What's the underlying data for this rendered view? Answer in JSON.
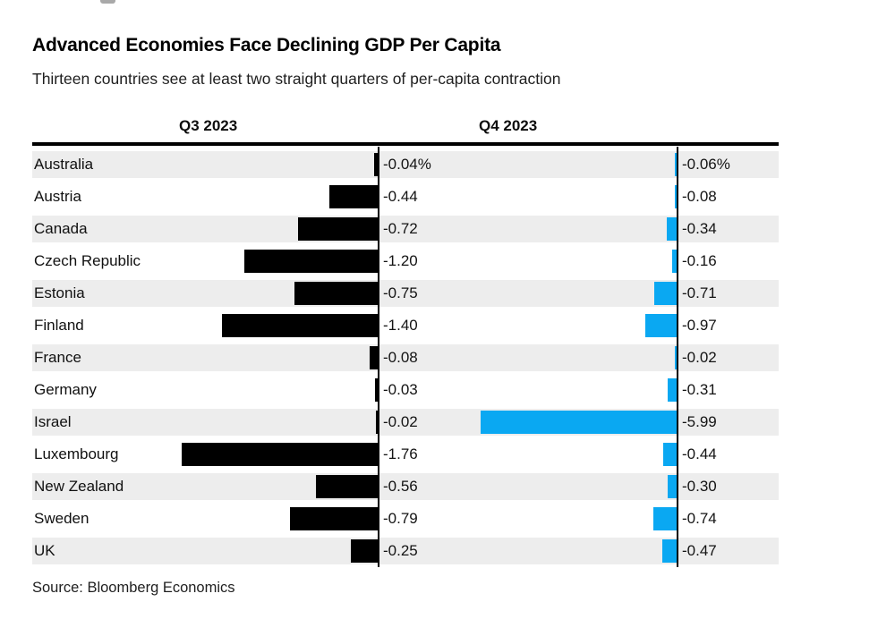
{
  "header": {
    "title": "Advanced Economies Face Declining GDP Per Capita",
    "subtitle": "Thirteen countries see at least two straight quarters of per-capita contraction"
  },
  "columns": {
    "q3_label": "Q3 2023",
    "q4_label": "Q4 2023"
  },
  "rows": [
    {
      "country": "Australia",
      "q3": "-0.04%",
      "q4": "-0.06%"
    },
    {
      "country": "Austria",
      "q3": "-0.44",
      "q4": "-0.08"
    },
    {
      "country": "Canada",
      "q3": "-0.72",
      "q4": "-0.34"
    },
    {
      "country": "Czech Republic",
      "q3": "-1.20",
      "q4": "-0.16"
    },
    {
      "country": "Estonia",
      "q3": "-0.75",
      "q4": "-0.71"
    },
    {
      "country": "Finland",
      "q3": "-1.40",
      "q4": "-0.97"
    },
    {
      "country": "France",
      "q3": "-0.08",
      "q4": "-0.02"
    },
    {
      "country": "Germany",
      "q3": "-0.03",
      "q4": "-0.31"
    },
    {
      "country": "Israel",
      "q3": "-0.02",
      "q4": "-5.99"
    },
    {
      "country": "Luxembourg",
      "q3": "-1.76",
      "q4": "-0.44"
    },
    {
      "country": "New Zealand",
      "q3": "-0.56",
      "q4": "-0.30"
    },
    {
      "country": "Sweden",
      "q3": "-0.79",
      "q4": "-0.74"
    },
    {
      "country": "UK",
      "q3": "-0.25",
      "q4": "-0.47"
    }
  ],
  "footer": {
    "source": "Source: Bloomberg Economics"
  },
  "colors": {
    "bar_black": "#000000",
    "bar_blue": "#0AA8F2",
    "row_stripe": "#EDEDED",
    "axis": "#000000"
  },
  "chart_data": {
    "type": "bar",
    "orientation": "horizontal",
    "title": "Advanced Economies Face Declining GDP Per Capita",
    "subtitle": "Thirteen countries see at least two straight quarters of per-capita contraction",
    "categories": [
      "Australia",
      "Austria",
      "Canada",
      "Czech Republic",
      "Estonia",
      "Finland",
      "France",
      "Germany",
      "Israel",
      "Luxembourg",
      "New Zealand",
      "Sweden",
      "UK"
    ],
    "series": [
      {
        "name": "Q3 2023",
        "color": "#000000",
        "values": [
          -0.04,
          -0.44,
          -0.72,
          -1.2,
          -0.75,
          -1.4,
          -0.08,
          -0.03,
          -0.02,
          -1.76,
          -0.56,
          -0.79,
          -0.25
        ]
      },
      {
        "name": "Q4 2023",
        "color": "#0AA8F2",
        "values": [
          -0.06,
          -0.08,
          -0.34,
          -0.16,
          -0.71,
          -0.97,
          -0.02,
          -0.31,
          -5.99,
          -0.44,
          -0.3,
          -0.74,
          -0.47
        ]
      }
    ],
    "unit": "%",
    "value_labels": true,
    "grid": false,
    "legend_position": "column-headers-above-panels",
    "layout": "two side-by-side panels sharing category rows; each panel scaled independently to its own max bar length; zebra-striped rows",
    "source": "Source: Bloomberg Economics"
  }
}
